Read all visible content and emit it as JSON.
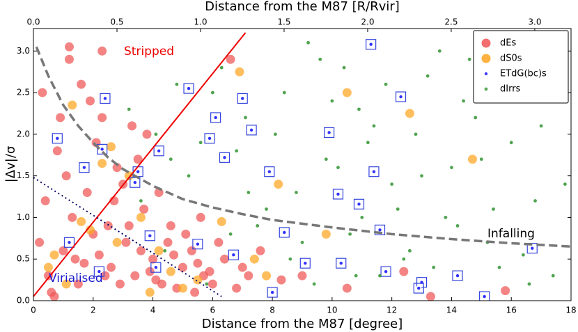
{
  "chart_data": {
    "type": "scatter",
    "xlabel": "Distance from the M87 [degree]",
    "x2label": "Distance from the M87 [R/Rvir]",
    "ylabel": "|Δv|/σ",
    "xlim": [
      0,
      18
    ],
    "xticks": [
      0,
      2,
      4,
      6,
      8,
      10,
      12,
      14,
      16,
      18
    ],
    "x2lim": [
      0,
      3.217
    ],
    "x2ticks": [
      {
        "value": 0,
        "label": "0.0"
      },
      {
        "value": 0.5,
        "label": "0.5"
      },
      {
        "value": 1,
        "label": "1.0"
      },
      {
        "value": 1.5,
        "label": "1.5"
      },
      {
        "value": 2,
        "label": "2.0"
      },
      {
        "value": 2.5,
        "label": "2.5"
      },
      {
        "value": 3,
        "label": "3.0"
      }
    ],
    "ylim": [
      0,
      3.27
    ],
    "yticks": [
      {
        "value": 0,
        "label": "0.0"
      },
      {
        "value": 0.5,
        "label": "0.5"
      },
      {
        "value": 1,
        "label": "1.0"
      },
      {
        "value": 1.5,
        "label": "1.5"
      },
      {
        "value": 2,
        "label": "2.0"
      },
      {
        "value": 2.5,
        "label": "2.5"
      },
      {
        "value": 3,
        "label": "3.0"
      }
    ],
    "legend": "upper right",
    "series": [
      {
        "name": "dEs",
        "color": "#f05555",
        "size": 6.5,
        "x": [
          0.3,
          0.5,
          0.8,
          1.0,
          1.2,
          1.5,
          1.8,
          2.0,
          2.3,
          2.6,
          2.8,
          3.1,
          3.4,
          3.7,
          4.0,
          4.3,
          4.6,
          5.0,
          5.3,
          5.7,
          6.0,
          6.4,
          6.8,
          7.2,
          0.4,
          0.9,
          1.3,
          1.7,
          2.1,
          2.5,
          2.9,
          3.3,
          3.6,
          3.9,
          4.2,
          4.5,
          4.8,
          5.1,
          5.5,
          5.9,
          0.6,
          1.1,
          1.6,
          2.2,
          2.7,
          3.2,
          0.2,
          0.7,
          1.4,
          1.9,
          2.4,
          3.0,
          3.5,
          4.1,
          4.7,
          5.4,
          6.2,
          7.0,
          7.6,
          8.3,
          9.0,
          10.5,
          12.4,
          13.3,
          15.8,
          2.3,
          3.8,
          5.6,
          6.6,
          1.2
        ],
        "values": [
          2.5,
          0.3,
          1.8,
          0.6,
          2.9,
          0.2,
          1.3,
          0.8,
          2.2,
          0.4,
          1.6,
          0.7,
          0.3,
          1.1,
          0.5,
          0.2,
          0.9,
          0.4,
          0.6,
          0.3,
          0.2,
          0.5,
          0.15,
          0.3,
          1.2,
          2.2,
          1.0,
          0.45,
          1.9,
          0.9,
          0.2,
          2.1,
          0.6,
          0.35,
          1.3,
          0.7,
          0.15,
          0.8,
          0.45,
          0.35,
          0.1,
          1.5,
          2.6,
          0.55,
          1.2,
          0.9,
          0.7,
          0.05,
          0.5,
          2.4,
          0.3,
          1.4,
          1.7,
          0.25,
          0.55,
          0.1,
          0.7,
          0.4,
          0.6,
          0.25,
          0.3,
          0.15,
          0.35,
          0.05,
          0.12,
          3.0,
          2.0,
          1.0,
          2.9,
          3.05
        ]
      },
      {
        "name": "dS0s",
        "color": "#ffa51f",
        "size": 6.5,
        "x": [
          1.3,
          2.3,
          3.2,
          3.6,
          1.9,
          0.7,
          4.6,
          5.5,
          6.3,
          7.4,
          9.8,
          10.5,
          12.6,
          14.7,
          0.5,
          2.8,
          1.1,
          3.9,
          5.0,
          6.9,
          4.2,
          8.2,
          7.8,
          2.6,
          1.6
        ],
        "values": [
          2.35,
          1.65,
          1.5,
          1.0,
          0.85,
          0.55,
          0.35,
          0.25,
          0.95,
          0.5,
          0.8,
          2.5,
          2.25,
          1.7,
          0.4,
          0.7,
          0.2,
          0.1,
          0.15,
          2.75,
          0.6,
          1.4,
          0.3,
          1.85,
          0.95
        ]
      },
      {
        "name": "ETdG(bc)s",
        "color": "#1a1aff",
        "size": 2.2,
        "boxed": true,
        "x": [
          0.8,
          1.2,
          1.7,
          2.4,
          2.3,
          3.4,
          3.5,
          3.9,
          4.2,
          5.2,
          5.5,
          6.1,
          6.4,
          7.0,
          7.3,
          7.9,
          8.4,
          9.1,
          9.9,
          10.2,
          10.3,
          10.9,
          11.3,
          11.4,
          11.6,
          12.3,
          13.0,
          14.2,
          15.1,
          16.7,
          4.1,
          5.9,
          6.7,
          2.2,
          8.0,
          11.8,
          12.9
        ],
        "values": [
          1.95,
          0.7,
          1.6,
          2.43,
          1.82,
          1.42,
          1.55,
          0.78,
          1.8,
          2.55,
          0.68,
          2.2,
          1.72,
          2.43,
          2.05,
          1.55,
          0.82,
          0.45,
          2.02,
          1.28,
          0.45,
          1.16,
          3.08,
          1.55,
          0.85,
          2.45,
          0.22,
          0.3,
          0.05,
          0.63,
          0.4,
          1.95,
          0.55,
          0.35,
          0.1,
          0.35,
          0.15
        ]
      },
      {
        "name": "dIrrs",
        "color": "#3d9a3d",
        "size": 2.4,
        "x": [
          3.2,
          4.1,
          4.8,
          5.6,
          6.3,
          7.1,
          7.8,
          8.4,
          9.0,
          9.6,
          10.2,
          10.8,
          11.4,
          12.0,
          12.6,
          13.2,
          13.8,
          14.4,
          15.0,
          15.6,
          16.2,
          16.8,
          17.4,
          3.6,
          4.4,
          5.2,
          6.0,
          6.8,
          7.5,
          8.1,
          8.8,
          9.4,
          10.0,
          10.6,
          11.2,
          11.8,
          12.4,
          13.0,
          13.6,
          14.2,
          14.8,
          15.4,
          16.0,
          16.6,
          17.2,
          17.8,
          9.2,
          10.4,
          11.6,
          12.8,
          14.0,
          15.2,
          8.6,
          7.2,
          6.6,
          13.4,
          14.6,
          16.4,
          12.2,
          10.9,
          9.8,
          11.0,
          15.9,
          17.0,
          5.8,
          4.6
        ],
        "values": [
          2.3,
          2.0,
          2.6,
          1.9,
          2.8,
          2.2,
          1.1,
          2.5,
          0.7,
          2.9,
          1.6,
          0.3,
          2.1,
          1.4,
          0.6,
          2.7,
          1.0,
          2.4,
          1.7,
          0.4,
          2.9,
          1.2,
          0.3,
          1.2,
          0.6,
          1.5,
          2.5,
          1.8,
          0.9,
          2.0,
          1.3,
          0.2,
          2.4,
          0.8,
          1.9,
          2.6,
          0.5,
          1.5,
          3.0,
          0.9,
          2.2,
          1.1,
          1.9,
          0.2,
          2.7,
          1.4,
          3.1,
          2.8,
          0.3,
          2.0,
          1.6,
          0.7,
          0.5,
          1.3,
          0.8,
          0.4,
          2.9,
          0.55,
          1.1,
          2.3,
          1.7,
          1.0,
          2.5,
          2.1,
          0.2,
          1.7
        ]
      }
    ],
    "curves": [
      {
        "label": "Stripped",
        "color": "#ee0000",
        "style": "solid",
        "x": [
          0,
          7.1
        ],
        "values": [
          0.05,
          3.22
        ]
      },
      {
        "label": "Infalling",
        "color": "#777777",
        "style": "dashed",
        "x": [
          0.1,
          0.5,
          1,
          1.5,
          2,
          2.5,
          3,
          4,
          5,
          6,
          7,
          8,
          10,
          12,
          14,
          16,
          18
        ],
        "values": [
          3.05,
          2.7,
          2.35,
          2.1,
          1.9,
          1.72,
          1.58,
          1.38,
          1.22,
          1.12,
          1.04,
          0.97,
          0.88,
          0.8,
          0.74,
          0.69,
          0.65
        ]
      },
      {
        "label": "Virialised",
        "color": "#000066",
        "style": "dotted",
        "x": [
          0,
          6.3
        ],
        "values": [
          1.48,
          0.05
        ]
      }
    ]
  }
}
